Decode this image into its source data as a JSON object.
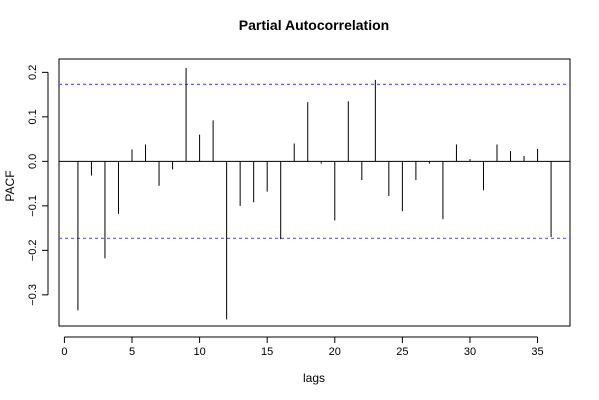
{
  "chart_data": {
    "type": "bar",
    "title": "Partial Autocorrelation",
    "xlabel": "lags",
    "ylabel": "PACF",
    "xlim": [
      -0.4,
      37.4
    ],
    "ylim": [
      -0.37,
      0.23
    ],
    "xticks": [
      0,
      5,
      10,
      15,
      20,
      25,
      30,
      35
    ],
    "xtick_labels": [
      "0",
      "5",
      "10",
      "15",
      "20",
      "25",
      "30",
      "35"
    ],
    "yticks": [
      -0.3,
      -0.2,
      -0.1,
      0.0,
      0.1,
      0.2
    ],
    "ytick_labels": [
      "−0.3",
      "−0.2",
      "−0.1",
      "0.0",
      "0.1",
      "0.2"
    ],
    "lags": [
      1,
      2,
      3,
      4,
      5,
      6,
      7,
      8,
      9,
      10,
      11,
      12,
      13,
      14,
      15,
      16,
      17,
      18,
      19,
      20,
      21,
      22,
      23,
      24,
      25,
      26,
      27,
      28,
      29,
      30,
      31,
      32,
      33,
      34,
      35,
      36
    ],
    "values": [
      -0.335,
      -0.032,
      -0.218,
      -0.118,
      0.027,
      0.038,
      -0.055,
      -0.018,
      0.21,
      0.06,
      0.092,
      -0.355,
      -0.1,
      -0.092,
      -0.068,
      -0.175,
      0.04,
      0.133,
      -0.005,
      -0.133,
      0.135,
      -0.042,
      0.183,
      -0.078,
      -0.112,
      -0.042,
      -0.005,
      -0.13,
      0.038,
      0.005,
      -0.065,
      0.038,
      0.023,
      0.012,
      0.028,
      -0.17
    ],
    "confidence_band": 0.173,
    "colors": {
      "bars": "#000000",
      "zero_line": "#000000",
      "confidence_lines": "#5b5bff",
      "frame": "#000000"
    }
  }
}
